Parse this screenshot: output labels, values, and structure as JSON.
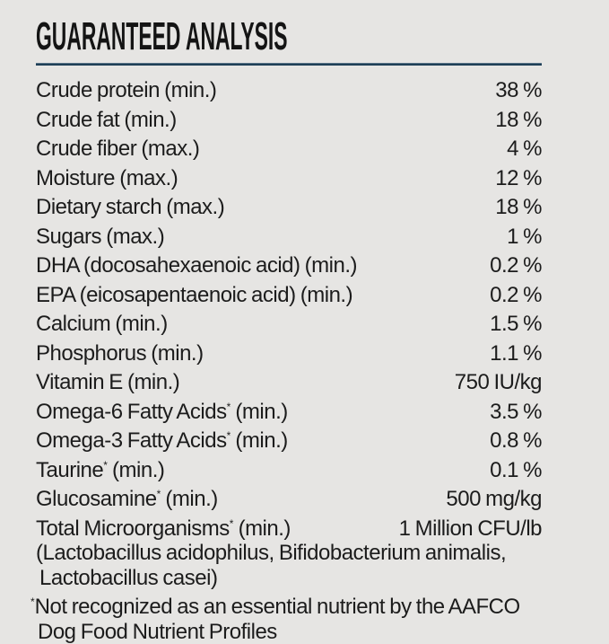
{
  "panel": {
    "title": "GUARANTEED ANALYSIS"
  },
  "colors": {
    "background": "#e6e5e3",
    "text": "#1c1c1c",
    "divider_blue": "#17364d"
  },
  "rows": [
    {
      "name": "Crude protein",
      "sup": "",
      "qualifier": " (min.)",
      "value": "38 %"
    },
    {
      "name": "Crude fat",
      "sup": "",
      "qualifier": " (min.)",
      "value": "18 %"
    },
    {
      "name": "Crude fiber",
      "sup": "",
      "qualifier": " (max.)",
      "value": "4 %"
    },
    {
      "name": "Moisture",
      "sup": "",
      "qualifier": " (max.)",
      "value": "12 %"
    },
    {
      "name": "Dietary starch",
      "sup": "",
      "qualifier": " (max.)",
      "value": "18 %"
    },
    {
      "name": "Sugars",
      "sup": "",
      "qualifier": " (max.)",
      "value": "1 %"
    },
    {
      "name": "DHA (docosahexaenoic acid)",
      "sup": "",
      "qualifier": " (min.)",
      "value": "0.2 %"
    },
    {
      "name": "EPA (eicosapentaenoic acid)",
      "sup": "",
      "qualifier": " (min.)",
      "value": "0.2 %"
    },
    {
      "name": "Calcium",
      "sup": "",
      "qualifier": " (min.)",
      "value": "1.5 %"
    },
    {
      "name": "Phosphorus",
      "sup": "",
      "qualifier": " (min.)",
      "value": "1.1 %"
    },
    {
      "name": "Vitamin E",
      "sup": "",
      "qualifier": " (min.)",
      "value": "750 IU/kg"
    },
    {
      "name": "Omega-6 Fatty Acids",
      "sup": "*",
      "qualifier": " (min.)",
      "value": "3.5 %"
    },
    {
      "name": "Omega-3 Fatty Acids",
      "sup": "*",
      "qualifier": " (min.)",
      "value": "0.8 %"
    },
    {
      "name": "Taurine",
      "sup": "*",
      "qualifier": " (min.)",
      "value": "0.1 %"
    },
    {
      "name": "Glucosamine",
      "sup": "*",
      "qualifier": " (min.)",
      "value": "500 mg/kg"
    },
    {
      "name": "Total Microorganisms",
      "sup": "*",
      "qualifier": " (min.)",
      "value": "1 Million CFU/lb"
    }
  ],
  "micro_note": {
    "lines": [
      "(Lactobacillus acidophilus, Bifidobacterium animalis,",
      "Lactobacillus casei)"
    ]
  },
  "footnote": {
    "marker": "*",
    "lines": [
      "Not recognized as an essential nutrient by the AAFCO",
      "Dog Food Nutrient Profiles"
    ]
  }
}
